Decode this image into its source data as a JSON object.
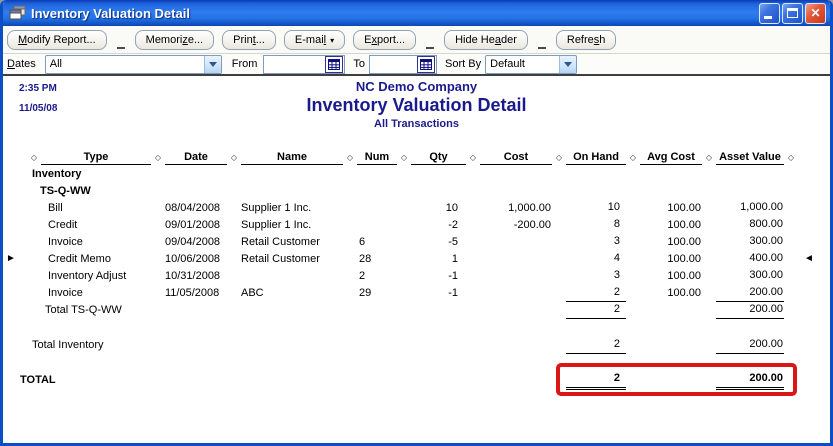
{
  "titlebar": {
    "title": "Inventory Valuation Detail",
    "controls": [
      "minimize",
      "maximize",
      "close"
    ]
  },
  "icons": {
    "window_icon": "cascade-windows",
    "minimize": "underscore-bar",
    "maximize": "window-outline",
    "close": "✕",
    "calendar": "calendar-grid",
    "combo_chevron": "chevron-down",
    "email_dropdown": "▾",
    "column_separator": "◇",
    "left_marker": "►",
    "right_marker": "◄"
  },
  "toolbar": {
    "buttons": [
      {
        "pre": "",
        "key": "M",
        "post": "odify Report...",
        "dropdown": false,
        "sep_after": true
      },
      {
        "pre": "Memori",
        "key": "z",
        "post": "e...",
        "dropdown": false,
        "sep_after": false
      },
      {
        "pre": "Prin",
        "key": "t",
        "post": "...",
        "dropdown": false,
        "sep_after": false
      },
      {
        "pre": "E-mai",
        "key": "l",
        "post": "",
        "dropdown": true,
        "sep_after": false
      },
      {
        "pre": "E",
        "key": "x",
        "post": "port...",
        "dropdown": false,
        "sep_after": true
      },
      {
        "pre": "Hide He",
        "key": "a",
        "post": "der",
        "dropdown": false,
        "sep_after": true
      },
      {
        "pre": "Refre",
        "key": "s",
        "post": "h",
        "dropdown": false,
        "sep_after": false
      }
    ]
  },
  "filters": {
    "dates_label": {
      "pre": "",
      "key": "D",
      "post": "ates"
    },
    "dates_value": "All",
    "from_label": "From",
    "from_value": "",
    "to_label": "To",
    "to_value": "",
    "sortby_label": "Sort By",
    "sortby_value": "Default"
  },
  "report_header": {
    "time": "2:35 PM",
    "date": "11/05/08",
    "company": "NC Demo Company",
    "title": "Inventory Valuation Detail",
    "subtitle": "All Transactions"
  },
  "table": {
    "columns": [
      "Type",
      "Date",
      "Name",
      "Num",
      "Qty",
      "Cost",
      "On Hand",
      "Avg Cost",
      "Asset Value"
    ],
    "rows": [
      {
        "style": "group",
        "indent": 0,
        "label": "Inventory"
      },
      {
        "style": "group",
        "indent": 1,
        "label": "TS-Q-WW"
      },
      {
        "style": "detail",
        "cells": {
          "type": "Bill",
          "date": "08/04/2008",
          "name": "Supplier 1 Inc.",
          "num": "",
          "qty": "10",
          "cost": "1,000.00",
          "onhand": "10",
          "avgcost": "100.00",
          "asset": "1,000.00"
        }
      },
      {
        "style": "detail",
        "cells": {
          "type": "Credit",
          "date": "09/01/2008",
          "name": "Supplier 1 Inc.",
          "num": "",
          "qty": "-2",
          "cost": "-200.00",
          "onhand": "8",
          "avgcost": "100.00",
          "asset": "800.00"
        }
      },
      {
        "style": "detail",
        "cells": {
          "type": "Invoice",
          "date": "09/04/2008",
          "name": "Retail Customer",
          "num": "6",
          "qty": "-5",
          "cost": "",
          "onhand": "3",
          "avgcost": "100.00",
          "asset": "300.00"
        }
      },
      {
        "style": "detail",
        "left_marker": true,
        "right_marker": true,
        "cells": {
          "type": "Credit Memo",
          "date": "10/06/2008",
          "name": "Retail Customer",
          "num": "28",
          "qty": "1",
          "cost": "",
          "onhand": "4",
          "avgcost": "100.00",
          "asset": "400.00"
        }
      },
      {
        "style": "detail",
        "cells": {
          "type": "Inventory Adjust",
          "date": "10/31/2008",
          "name": "",
          "num": "2",
          "qty": "-1",
          "cost": "",
          "onhand": "3",
          "avgcost": "100.00",
          "asset": "300.00"
        }
      },
      {
        "style": "detail",
        "underline": true,
        "cells": {
          "type": "Invoice",
          "date": "11/05/2008",
          "name": "ABC",
          "num": "29",
          "qty": "-1",
          "cost": "",
          "onhand": "2",
          "avgcost": "100.00",
          "asset": "200.00"
        }
      },
      {
        "style": "subtotal",
        "indent": 1,
        "label": "Total TS-Q-WW",
        "onhand": "2",
        "asset": "200.00"
      },
      {
        "style": "spacer",
        "h": 18
      },
      {
        "style": "subtotal",
        "indent": 0,
        "label": "Total Inventory",
        "onhand": "2",
        "asset": "200.00"
      },
      {
        "style": "spacer",
        "h": 17
      },
      {
        "style": "grandtotal",
        "label": "TOTAL",
        "onhand": "2",
        "asset": "200.00"
      }
    ]
  },
  "annotation": {
    "highlight_color": "#DB1616"
  },
  "colors": {
    "header_navy": "#1A1A8C",
    "titlebar_blue": "#2F7CEE",
    "close_red": "#D84832"
  }
}
